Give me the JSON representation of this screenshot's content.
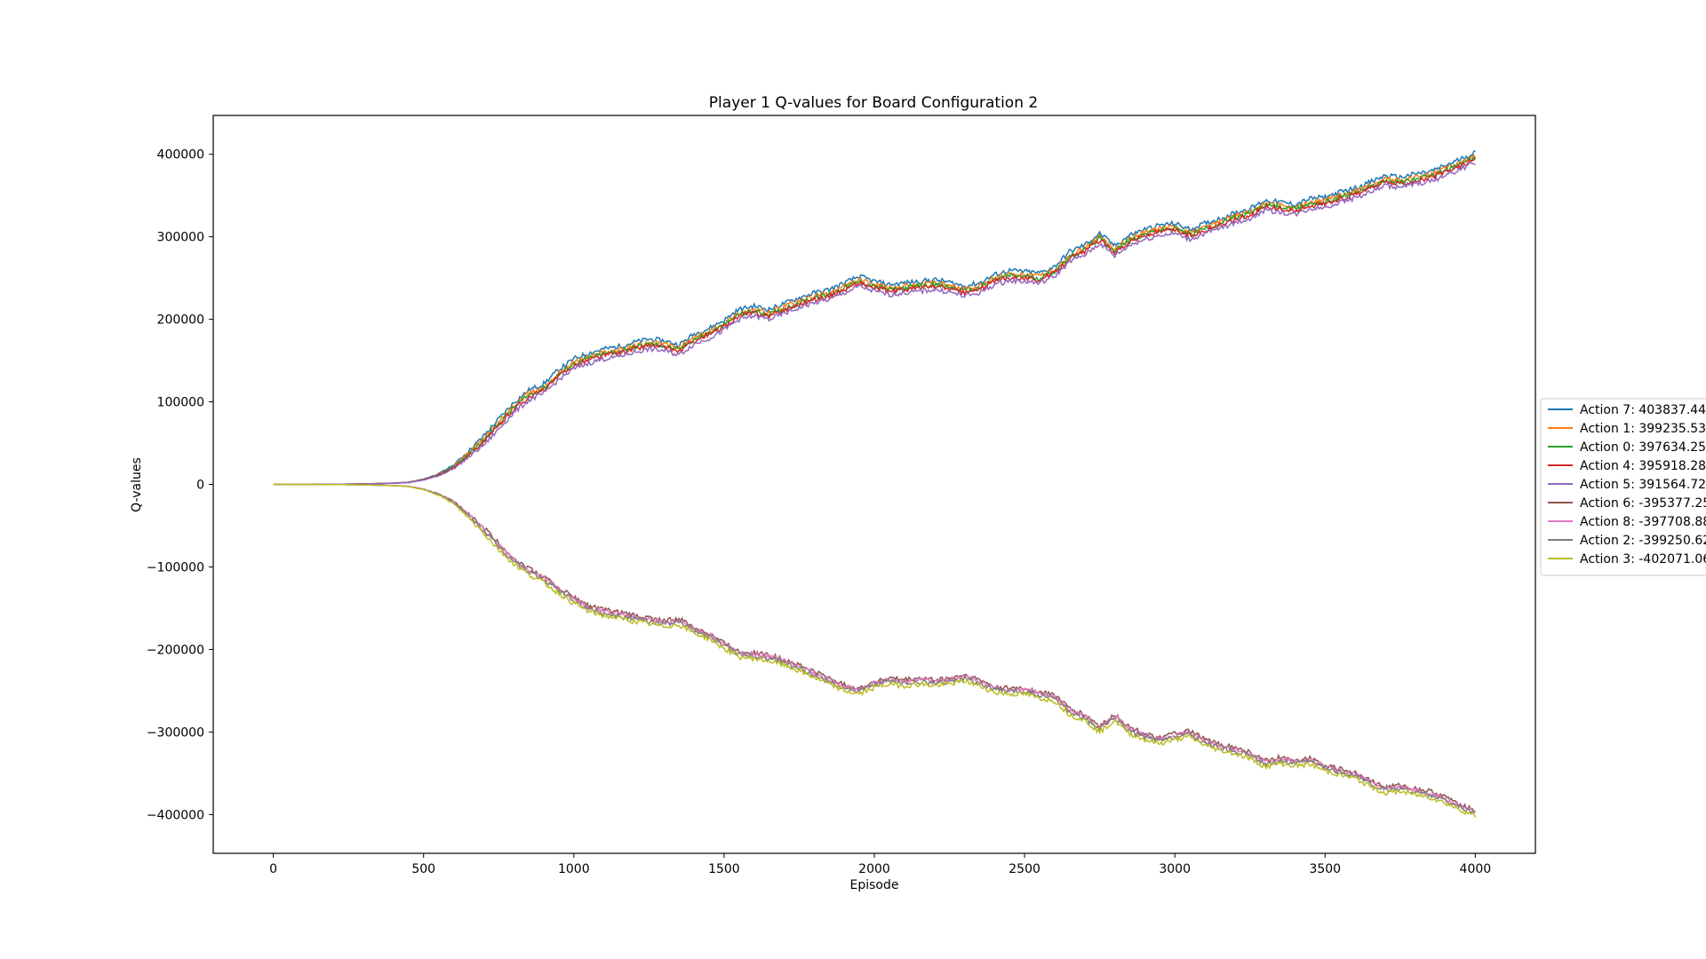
{
  "chart_data": {
    "type": "line",
    "title": "Player 1 Q-values for Board Configuration 2",
    "xlabel": "Episode",
    "ylabel": "Q-values",
    "xlim": [
      -200,
      4200
    ],
    "ylim": [
      -447000,
      447000
    ],
    "x_ticks": [
      0,
      500,
      1000,
      1500,
      2000,
      2500,
      3000,
      3500,
      4000
    ],
    "x_tick_labels": [
      "0",
      "500",
      "1000",
      "1500",
      "2000",
      "2500",
      "3000",
      "3500",
      "4000"
    ],
    "y_ticks": [
      400000,
      300000,
      200000,
      100000,
      0,
      -100000,
      -200000,
      -300000,
      -400000
    ],
    "y_tick_labels": [
      "400000",
      "300000",
      "200000",
      "100000",
      "0",
      "−100000",
      "−200000",
      "−300000",
      "−400000"
    ],
    "grid": false,
    "legend_position": "right",
    "envelope_upper": {
      "x": [
        0,
        100,
        200,
        300,
        400,
        450,
        500,
        550,
        600,
        650,
        700,
        750,
        800,
        850,
        900,
        950,
        1000,
        1050,
        1100,
        1150,
        1200,
        1250,
        1300,
        1350,
        1400,
        1450,
        1500,
        1550,
        1600,
        1650,
        1700,
        1750,
        1800,
        1850,
        1900,
        1950,
        2000,
        2050,
        2100,
        2150,
        2200,
        2250,
        2300,
        2350,
        2400,
        2450,
        2500,
        2550,
        2600,
        2650,
        2700,
        2750,
        2800,
        2850,
        2900,
        2950,
        3000,
        3050,
        3100,
        3150,
        3200,
        3250,
        3300,
        3350,
        3400,
        3450,
        3500,
        3550,
        3600,
        3650,
        3700,
        3750,
        3800,
        3850,
        3900,
        3950,
        4000
      ],
      "y": [
        0,
        0,
        200,
        600,
        1500,
        2500,
        6000,
        12000,
        22000,
        38000,
        55000,
        75000,
        95000,
        110000,
        118000,
        135000,
        148000,
        155000,
        160000,
        163000,
        168000,
        172000,
        170000,
        165000,
        178000,
        185000,
        195000,
        208000,
        212000,
        208000,
        215000,
        222000,
        228000,
        232000,
        240000,
        248000,
        242000,
        238000,
        240000,
        242000,
        244000,
        241000,
        236000,
        240000,
        250000,
        255000,
        254000,
        252000,
        260000,
        278000,
        286000,
        300000,
        285000,
        298000,
        305000,
        310000,
        312000,
        305000,
        312000,
        318000,
        325000,
        330000,
        340000,
        338000,
        335000,
        342000,
        344000,
        350000,
        355000,
        362000,
        370000,
        368000,
        372000,
        375000,
        382000,
        390000,
        398000
      ]
    },
    "envelope_lower": {
      "x": [
        0,
        100,
        200,
        300,
        400,
        450,
        500,
        550,
        600,
        650,
        700,
        750,
        800,
        850,
        900,
        950,
        1000,
        1050,
        1100,
        1150,
        1200,
        1250,
        1300,
        1350,
        1400,
        1450,
        1500,
        1550,
        1600,
        1650,
        1700,
        1750,
        1800,
        1850,
        1900,
        1950,
        2000,
        2050,
        2100,
        2150,
        2200,
        2250,
        2300,
        2350,
        2400,
        2450,
        2500,
        2550,
        2600,
        2650,
        2700,
        2750,
        2800,
        2850,
        2900,
        2950,
        3000,
        3050,
        3100,
        3150,
        3200,
        3250,
        3300,
        3350,
        3400,
        3450,
        3500,
        3550,
        3600,
        3650,
        3700,
        3750,
        3800,
        3850,
        3900,
        3950,
        4000
      ],
      "y": [
        0,
        0,
        -200,
        -600,
        -1500,
        -2500,
        -6000,
        -12000,
        -22000,
        -38000,
        -55000,
        -75000,
        -92000,
        -105000,
        -115000,
        -128000,
        -140000,
        -150000,
        -155000,
        -158000,
        -162000,
        -165000,
        -168000,
        -166000,
        -176000,
        -183000,
        -195000,
        -205000,
        -207000,
        -210000,
        -215000,
        -222000,
        -230000,
        -238000,
        -246000,
        -250000,
        -242000,
        -238000,
        -240000,
        -238000,
        -240000,
        -238000,
        -234000,
        -240000,
        -248000,
        -250000,
        -250000,
        -255000,
        -258000,
        -275000,
        -282000,
        -296000,
        -282000,
        -298000,
        -305000,
        -310000,
        -305000,
        -302000,
        -312000,
        -318000,
        -322000,
        -328000,
        -338000,
        -334000,
        -337000,
        -335000,
        -343000,
        -348000,
        -352000,
        -362000,
        -370000,
        -368000,
        -372000,
        -375000,
        -382000,
        -390000,
        -398000
      ]
    },
    "series": [
      {
        "name": "Action 7: 403837.44",
        "color": "#1f77b4",
        "branch": "upper",
        "offset": 4000
      },
      {
        "name": "Action 1: 399235.53",
        "color": "#ff7f0e",
        "branch": "upper",
        "offset": 0
      },
      {
        "name": "Action 0: 397634.25",
        "color": "#2ca02c",
        "branch": "upper",
        "offset": -2000
      },
      {
        "name": "Action 4: 395918.28",
        "color": "#d62728",
        "branch": "upper",
        "offset": -4000
      },
      {
        "name": "Action 5: 391564.72",
        "color": "#9467bd",
        "branch": "upper",
        "offset": -8000
      },
      {
        "name": "Action 6: -395377.25",
        "color": "#8c564b",
        "branch": "lower",
        "offset": 3000
      },
      {
        "name": "Action 8: -397708.88",
        "color": "#e377c2",
        "branch": "lower",
        "offset": 1000
      },
      {
        "name": "Action 2: -399250.62",
        "color": "#7f7f7f",
        "branch": "lower",
        "offset": -1000
      },
      {
        "name": "Action 3: -402071.06",
        "color": "#bcbd22",
        "branch": "lower",
        "offset": -4000
      }
    ]
  }
}
